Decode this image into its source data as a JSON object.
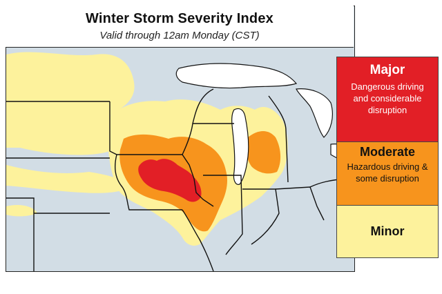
{
  "title": "Winter Storm Severity Index",
  "subtitle": "Valid through 12am Monday (CST)",
  "legend": {
    "major": {
      "label": "Major",
      "description": "Dangerous driving and considerable disruption",
      "color": "#e21f26"
    },
    "moderate": {
      "label": "Moderate",
      "description": "Hazardous driving & some disruption",
      "color": "#f7941d"
    },
    "minor": {
      "label": "Minor",
      "description": "",
      "color": "#fdf29c"
    }
  },
  "map_colors": {
    "none": "#d2dde5",
    "water": "#ffffff",
    "border": "#111111"
  }
}
